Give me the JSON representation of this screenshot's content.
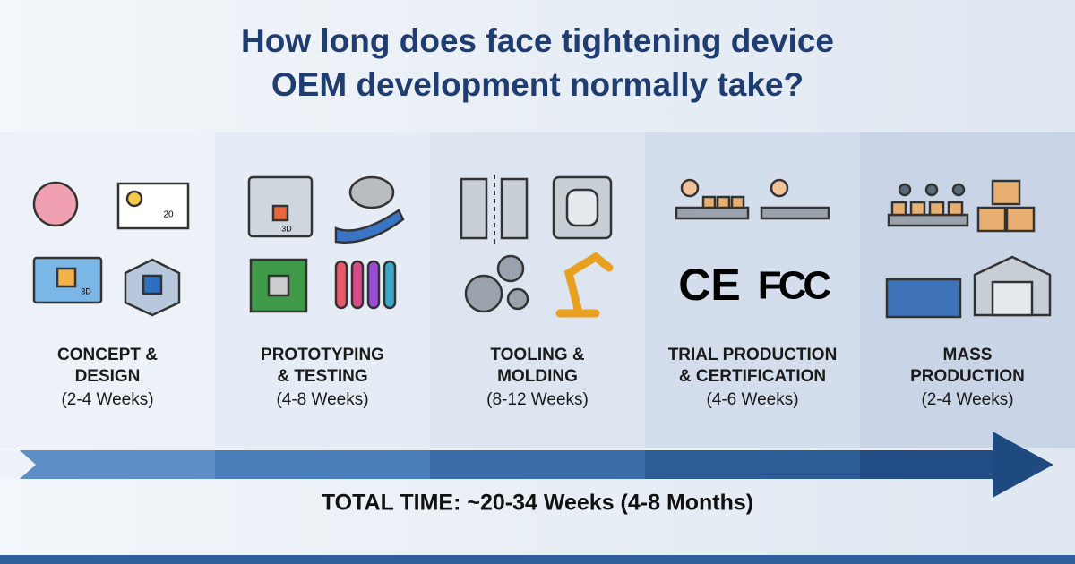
{
  "title": [
    "How long does face tightening device",
    "OEM development normally take?"
  ],
  "stages": [
    {
      "name": [
        "CONCEPT &",
        "DESIGN"
      ],
      "duration": "(2-4 Weeks)",
      "icon_labels": [
        "20",
        "3D"
      ]
    },
    {
      "name": [
        "PROTOTYPING",
        "& TESTING"
      ],
      "duration": "(4-8 Weeks)",
      "icon_labels": [
        "3D"
      ]
    },
    {
      "name": [
        "TOOLING &",
        "MOLDING"
      ],
      "duration": "(8-12 Weeks)"
    },
    {
      "name": [
        "TRIAL PRODUCTION",
        "& CERTIFICATION"
      ],
      "duration": "(4-6 Weeks)",
      "icon_labels": [
        "CE",
        "FCC"
      ]
    },
    {
      "name": [
        "MASS",
        "PRODUCTION"
      ],
      "duration": "(2-4 Weeks)"
    }
  ],
  "total": "TOTAL TIME: ~20-34 Weeks (4-8 Months)"
}
